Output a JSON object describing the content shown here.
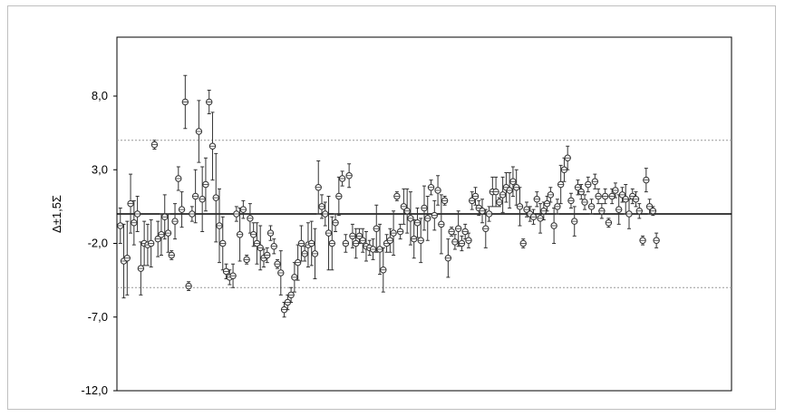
{
  "chart_data": {
    "type": "scatter",
    "title": "",
    "xlabel": "",
    "ylabel": "Δ±1,5Σ",
    "ylim": [
      -12,
      12
    ],
    "yticks": [
      8.0,
      3.0,
      -2.0,
      -7.0,
      -12.0
    ],
    "ytick_labels": [
      "8,0",
      "3,0",
      "-2,0",
      "-7,0",
      "-12,0"
    ],
    "xlim": [
      0,
      180
    ],
    "reference_line": 0,
    "limit_lines": [
      5.0,
      -5.0
    ],
    "grid": false,
    "legend": "none",
    "colors": {
      "points": "#333333",
      "zero_line": "#000000",
      "limit_lines": "#999999",
      "frame": "#000000"
    },
    "points": [
      {
        "x": 1,
        "y": -0.8,
        "err": 1.2
      },
      {
        "x": 2,
        "y": -3.2,
        "err": 2.5
      },
      {
        "x": 3,
        "y": -3.0,
        "err": 2.5
      },
      {
        "x": 4,
        "y": 0.7,
        "err": 2.0
      },
      {
        "x": 5,
        "y": -0.6,
        "err": 1.5
      },
      {
        "x": 6,
        "y": 0.0,
        "err": 1.2
      },
      {
        "x": 7,
        "y": -3.7,
        "err": 1.8
      },
      {
        "x": 8,
        "y": -2.0,
        "err": 1.5
      },
      {
        "x": 9,
        "y": -2.1,
        "err": 1.4
      },
      {
        "x": 10,
        "y": -2.0,
        "err": 1.6
      },
      {
        "x": 11,
        "y": 4.7,
        "err": 0.3
      },
      {
        "x": 12,
        "y": -1.7,
        "err": 1.2
      },
      {
        "x": 13,
        "y": -1.4,
        "err": 1.4
      },
      {
        "x": 14,
        "y": -0.2,
        "err": 1.5
      },
      {
        "x": 15,
        "y": -1.3,
        "err": 1.3
      },
      {
        "x": 16,
        "y": -2.8,
        "err": 0.3
      },
      {
        "x": 17,
        "y": -0.5,
        "err": 1.2
      },
      {
        "x": 18,
        "y": 2.4,
        "err": 0.8
      },
      {
        "x": 19,
        "y": 0.3,
        "err": 1.2
      },
      {
        "x": 20,
        "y": 7.6,
        "err": 1.8
      },
      {
        "x": 21,
        "y": -4.9,
        "err": 0.3
      },
      {
        "x": 22,
        "y": 0.0,
        "err": 0.5
      },
      {
        "x": 23,
        "y": 1.2,
        "err": 1.8
      },
      {
        "x": 24,
        "y": 5.6,
        "err": 2.1
      },
      {
        "x": 25,
        "y": 1.0,
        "err": 2.2
      },
      {
        "x": 26,
        "y": 2.0,
        "err": 1.8
      },
      {
        "x": 27,
        "y": 7.6,
        "err": 0.8
      },
      {
        "x": 28,
        "y": 4.6,
        "err": 2.3
      },
      {
        "x": 29,
        "y": 1.1,
        "err": 3.0
      },
      {
        "x": 30,
        "y": -0.8,
        "err": 2.5
      },
      {
        "x": 31,
        "y": -2.0,
        "err": 1.8
      },
      {
        "x": 32,
        "y": -3.9,
        "err": 0.5
      },
      {
        "x": 33,
        "y": -4.3,
        "err": 0.5
      },
      {
        "x": 34,
        "y": -4.2,
        "err": 0.8
      },
      {
        "x": 35,
        "y": 0.0,
        "err": 0.5
      },
      {
        "x": 36,
        "y": -1.4,
        "err": 1.8
      },
      {
        "x": 37,
        "y": 0.3,
        "err": 0.6
      },
      {
        "x": 38,
        "y": -3.1,
        "err": 0.3
      },
      {
        "x": 39,
        "y": -0.3,
        "err": 1.0
      },
      {
        "x": 40,
        "y": -1.4,
        "err": 0.8
      },
      {
        "x": 41,
        "y": -2.0,
        "err": 1.4
      },
      {
        "x": 42,
        "y": -2.3,
        "err": 1.5
      },
      {
        "x": 43,
        "y": -3.0,
        "err": 0.6
      },
      {
        "x": 44,
        "y": -2.8,
        "err": 0.5
      },
      {
        "x": 45,
        "y": -1.3,
        "err": 0.5
      },
      {
        "x": 46,
        "y": -2.2,
        "err": 0.5
      },
      {
        "x": 47,
        "y": -3.4,
        "err": 0.3
      },
      {
        "x": 48,
        "y": -4.0,
        "err": 1.5
      },
      {
        "x": 49,
        "y": -6.5,
        "err": 0.5
      },
      {
        "x": 50,
        "y": -6.0,
        "err": 0.5
      },
      {
        "x": 51,
        "y": -5.5,
        "err": 0.5
      },
      {
        "x": 52,
        "y": -4.3,
        "err": 1.0
      },
      {
        "x": 53,
        "y": -3.3,
        "err": 1.2
      },
      {
        "x": 54,
        "y": -2.0,
        "err": 1.2
      },
      {
        "x": 55,
        "y": -2.7,
        "err": 0.5
      },
      {
        "x": 56,
        "y": -2.1,
        "err": 1.5
      },
      {
        "x": 57,
        "y": -2.0,
        "err": 1.5
      },
      {
        "x": 58,
        "y": -2.7,
        "err": 1.7
      },
      {
        "x": 59,
        "y": 1.8,
        "err": 1.8
      },
      {
        "x": 60,
        "y": 0.5,
        "err": 0.8
      },
      {
        "x": 61,
        "y": 0.0,
        "err": 0.8
      },
      {
        "x": 62,
        "y": -1.3,
        "err": 2.5
      },
      {
        "x": 63,
        "y": -2.0,
        "err": 1.8
      },
      {
        "x": 64,
        "y": -0.6,
        "err": 0.6
      },
      {
        "x": 65,
        "y": 1.2,
        "err": 1.3
      },
      {
        "x": 66,
        "y": 2.4,
        "err": 0.5
      },
      {
        "x": 67,
        "y": -2.0,
        "err": 0.6
      },
      {
        "x": 68,
        "y": 2.6,
        "err": 0.8
      },
      {
        "x": 69,
        "y": -1.5,
        "err": 0.8
      },
      {
        "x": 70,
        "y": -2.0,
        "err": 1.0
      },
      {
        "x": 71,
        "y": -1.5,
        "err": 0.5
      },
      {
        "x": 72,
        "y": -1.8,
        "err": 0.8
      },
      {
        "x": 73,
        "y": -2.2,
        "err": 1.0
      },
      {
        "x": 74,
        "y": -2.3,
        "err": 0.5
      },
      {
        "x": 75,
        "y": -2.4,
        "err": 0.7
      },
      {
        "x": 76,
        "y": -1.0,
        "err": 1.6
      },
      {
        "x": 77,
        "y": -2.4,
        "err": 1.7
      },
      {
        "x": 78,
        "y": -3.8,
        "err": 1.5
      },
      {
        "x": 79,
        "y": -2.0,
        "err": 0.6
      },
      {
        "x": 80,
        "y": -1.8,
        "err": 0.8
      },
      {
        "x": 81,
        "y": -1.3,
        "err": 1.5
      },
      {
        "x": 82,
        "y": 1.2,
        "err": 0.3
      },
      {
        "x": 83,
        "y": -1.2,
        "err": 0.5
      },
      {
        "x": 84,
        "y": 0.5,
        "err": 1.2
      },
      {
        "x": 85,
        "y": 0.2,
        "err": 1.5
      },
      {
        "x": 86,
        "y": -0.3,
        "err": 1.8
      },
      {
        "x": 87,
        "y": -1.7,
        "err": 1.3
      },
      {
        "x": 88,
        "y": -0.6,
        "err": 1.0
      },
      {
        "x": 89,
        "y": -1.8,
        "err": 1.5
      },
      {
        "x": 90,
        "y": 0.4,
        "err": 1.5
      },
      {
        "x": 91,
        "y": -0.3,
        "err": 1.5
      },
      {
        "x": 92,
        "y": 1.8,
        "err": 0.5
      },
      {
        "x": 93,
        "y": -0.1,
        "err": 1.0
      },
      {
        "x": 94,
        "y": 1.6,
        "err": 1.0
      },
      {
        "x": 95,
        "y": -0.7,
        "err": 2.0
      },
      {
        "x": 96,
        "y": 0.9,
        "err": 0.3
      },
      {
        "x": 97,
        "y": -3.0,
        "err": 1.3
      },
      {
        "x": 98,
        "y": -1.2,
        "err": 0.3
      },
      {
        "x": 99,
        "y": -1.9,
        "err": 0.5
      },
      {
        "x": 100,
        "y": -1.0,
        "err": 1.2
      },
      {
        "x": 101,
        "y": -2.0,
        "err": 0.5
      },
      {
        "x": 102,
        "y": -1.2,
        "err": 0.5
      },
      {
        "x": 103,
        "y": -1.8,
        "err": 0.5
      },
      {
        "x": 104,
        "y": 0.9,
        "err": 0.6
      },
      {
        "x": 105,
        "y": 1.2,
        "err": 0.6
      },
      {
        "x": 106,
        "y": 0.4,
        "err": 0.5
      },
      {
        "x": 107,
        "y": 0.2,
        "err": 0.8
      },
      {
        "x": 108,
        "y": -1.0,
        "err": 1.3
      },
      {
        "x": 109,
        "y": 0.0,
        "err": 0.5
      },
      {
        "x": 110,
        "y": 1.5,
        "err": 1.0
      },
      {
        "x": 111,
        "y": 1.5,
        "err": 1.0
      },
      {
        "x": 112,
        "y": 0.8,
        "err": 0.3
      },
      {
        "x": 113,
        "y": 1.3,
        "err": 1.2
      },
      {
        "x": 114,
        "y": 1.8,
        "err": 1.0
      },
      {
        "x": 115,
        "y": 1.6,
        "err": 1.2
      },
      {
        "x": 116,
        "y": 2.2,
        "err": 1.0
      },
      {
        "x": 117,
        "y": 1.8,
        "err": 1.2
      },
      {
        "x": 118,
        "y": 0.5,
        "err": 1.3
      },
      {
        "x": 119,
        "y": -2.0,
        "err": 0.3
      },
      {
        "x": 120,
        "y": 0.3,
        "err": 0.5
      },
      {
        "x": 121,
        "y": 0.0,
        "err": 0.5
      },
      {
        "x": 122,
        "y": -0.2,
        "err": 0.5
      },
      {
        "x": 123,
        "y": 1.0,
        "err": 0.5
      },
      {
        "x": 124,
        "y": -0.3,
        "err": 1.0
      },
      {
        "x": 125,
        "y": 0.2,
        "err": 0.6
      },
      {
        "x": 126,
        "y": 0.7,
        "err": 0.5
      },
      {
        "x": 127,
        "y": 1.3,
        "err": 0.5
      },
      {
        "x": 128,
        "y": -0.8,
        "err": 1.2
      },
      {
        "x": 129,
        "y": 0.5,
        "err": 0.5
      },
      {
        "x": 130,
        "y": 2.0,
        "err": 1.3
      },
      {
        "x": 131,
        "y": 3.0,
        "err": 0.8
      },
      {
        "x": 132,
        "y": 3.8,
        "err": 0.8
      },
      {
        "x": 133,
        "y": 0.9,
        "err": 0.5
      },
      {
        "x": 134,
        "y": -0.5,
        "err": 1.0
      },
      {
        "x": 135,
        "y": 1.8,
        "err": 0.5
      },
      {
        "x": 136,
        "y": 1.5,
        "err": 0.5
      },
      {
        "x": 137,
        "y": 0.8,
        "err": 0.5
      },
      {
        "x": 138,
        "y": 2.0,
        "err": 0.5
      },
      {
        "x": 139,
        "y": 0.5,
        "err": 0.5
      },
      {
        "x": 140,
        "y": 2.2,
        "err": 0.5
      },
      {
        "x": 141,
        "y": 1.2,
        "err": 0.5
      },
      {
        "x": 142,
        "y": 0.2,
        "err": 0.5
      },
      {
        "x": 143,
        "y": 1.2,
        "err": 0.5
      },
      {
        "x": 144,
        "y": -0.6,
        "err": 0.3
      },
      {
        "x": 145,
        "y": 1.2,
        "err": 0.5
      },
      {
        "x": 146,
        "y": 1.6,
        "err": 0.5
      },
      {
        "x": 147,
        "y": 0.3,
        "err": 1.0
      },
      {
        "x": 148,
        "y": 1.3,
        "err": 0.5
      },
      {
        "x": 149,
        "y": 1.0,
        "err": 1.0
      },
      {
        "x": 150,
        "y": 0.0,
        "err": 1.0
      },
      {
        "x": 151,
        "y": 1.2,
        "err": 0.5
      },
      {
        "x": 152,
        "y": 1.0,
        "err": 0.5
      },
      {
        "x": 153,
        "y": 0.2,
        "err": 0.5
      },
      {
        "x": 154,
        "y": -1.8,
        "err": 0.3
      },
      {
        "x": 155,
        "y": 2.3,
        "err": 0.8
      },
      {
        "x": 156,
        "y": 0.5,
        "err": 0.5
      },
      {
        "x": 157,
        "y": 0.2,
        "err": 0.3
      },
      {
        "x": 158,
        "y": -1.8,
        "err": 0.5
      }
    ]
  }
}
